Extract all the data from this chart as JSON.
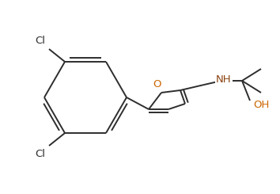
{
  "background_color": "#ffffff",
  "bond_color": "#2d2d2d",
  "atom_color_O": "#cc6600",
  "atom_color_N": "#8b4513",
  "atom_color_Cl": "#2d2d2d",
  "bond_width": 1.4,
  "figsize": [
    3.54,
    2.45
  ],
  "dpi": 100,
  "xlim": [
    0,
    354
  ],
  "ylim": [
    0,
    245
  ]
}
